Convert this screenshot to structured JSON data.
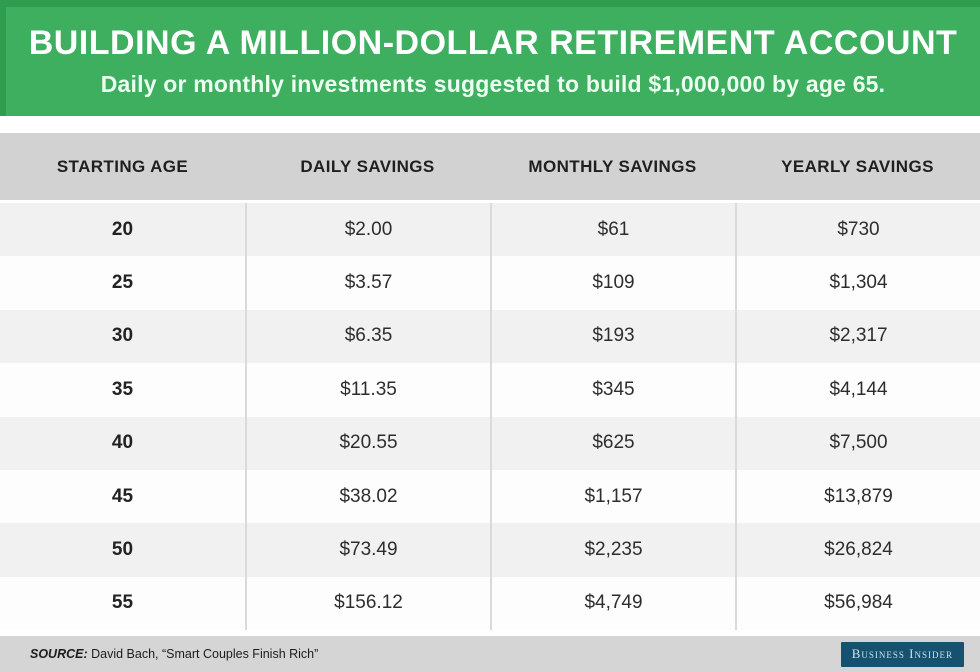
{
  "colors": {
    "banner_green": "#3eae5f",
    "banner_green_dark": "#2f9c50",
    "band_gray": "#d2d2d2",
    "row_alt_gray": "#f1f1f1",
    "row_white": "#fdfdfd",
    "badge_blue": "#16526f"
  },
  "banner": {
    "title": "BUILDING A MILLION-DOLLAR RETIREMENT ACCOUNT",
    "subtitle": "Daily or monthly investments suggested to build $1,000,000 by age 65."
  },
  "chart_data": {
    "type": "table",
    "title": "Building a million-dollar retirement account",
    "columns": [
      "STARTING AGE",
      "DAILY SAVINGS",
      "MONTHLY SAVINGS",
      "YEARLY SAVINGS"
    ],
    "rows": [
      [
        "20",
        "$2.00",
        "$61",
        "$730"
      ],
      [
        "25",
        "$3.57",
        "$109",
        "$1,304"
      ],
      [
        "30",
        "$6.35",
        "$193",
        "$2,317"
      ],
      [
        "35",
        "$11.35",
        "$345",
        "$4,144"
      ],
      [
        "40",
        "$20.55",
        "$625",
        "$7,500"
      ],
      [
        "45",
        "$38.02",
        "$1,157",
        "$13,879"
      ],
      [
        "50",
        "$73.49",
        "$2,235",
        "$26,824"
      ],
      [
        "55",
        "$156.12",
        "$4,749",
        "$56,984"
      ]
    ]
  },
  "footer": {
    "source_label": "SOURCE:",
    "source_text": " David Bach, “Smart Couples Finish Rich”",
    "brand": "Business Insider"
  }
}
